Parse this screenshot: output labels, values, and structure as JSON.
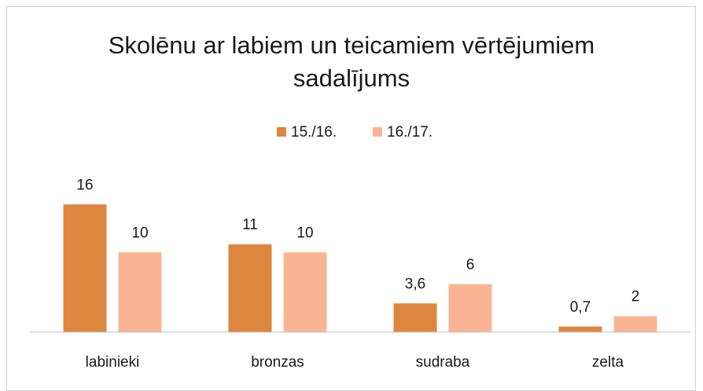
{
  "chart_data": {
    "type": "bar",
    "title": "Skolēnu ar labiem un teicamiem vērtējumiem sadalījums",
    "categories": [
      "labinieki",
      "bronzas",
      "sudraba",
      "zelta"
    ],
    "series": [
      {
        "name": "15./16.",
        "color": "#dd8640",
        "values": [
          16,
          11,
          3.6,
          0.7
        ],
        "value_labels": [
          "16",
          "11",
          "3,6",
          "0,7"
        ]
      },
      {
        "name": "16./17.",
        "color": "#f9b593",
        "values": [
          10,
          10,
          6,
          2
        ]
      }
    ],
    "ylim": [
      0,
      18
    ],
    "legend": "top"
  }
}
